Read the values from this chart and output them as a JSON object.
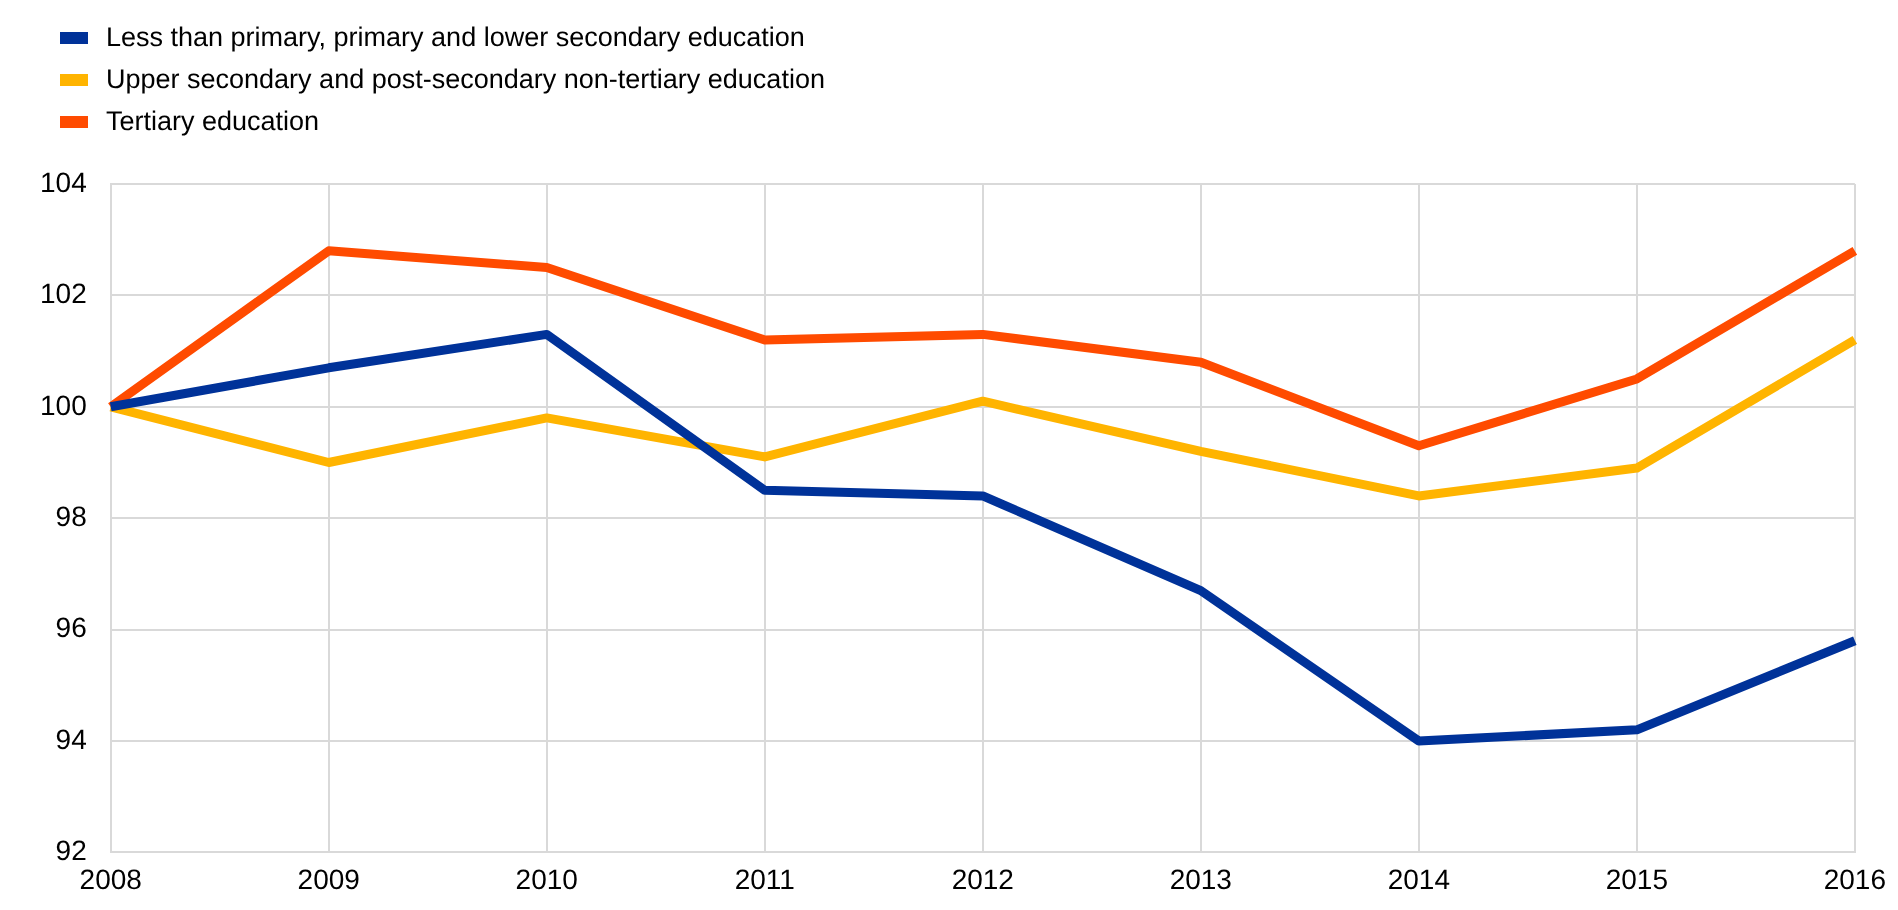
{
  "chart_data": {
    "type": "line",
    "categories": [
      "2008",
      "2009",
      "2010",
      "2011",
      "2012",
      "2013",
      "2014",
      "2015",
      "2016"
    ],
    "series": [
      {
        "name": "Less than primary, primary and lower secondary education",
        "color": "#003299",
        "values": [
          100,
          100.7,
          101.3,
          98.5,
          98.4,
          96.7,
          94.0,
          94.2,
          95.8
        ]
      },
      {
        "name": "Upper secondary and post-secondary non-tertiary education",
        "color": "#ffb400",
        "values": [
          100,
          99.0,
          99.8,
          99.1,
          100.1,
          99.2,
          98.4,
          98.9,
          101.2
        ]
      },
      {
        "name": "Tertiary education",
        "color": "#ff4b00",
        "values": [
          100,
          102.8,
          102.5,
          101.2,
          101.3,
          100.8,
          99.3,
          100.5,
          102.8
        ]
      }
    ],
    "ylim": [
      92,
      104
    ],
    "yticks": [
      92,
      94,
      96,
      98,
      100,
      102,
      104
    ],
    "grid": true,
    "legend": "top left",
    "marker": "none",
    "line_style": "solid"
  }
}
